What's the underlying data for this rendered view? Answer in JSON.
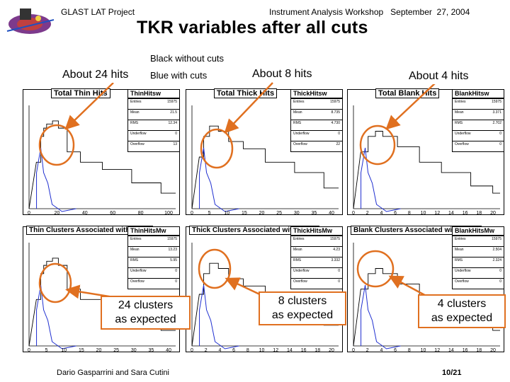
{
  "header": {
    "project": "GLAST LAT Project",
    "workshop": "Instrument Analysis Workshop   September  27, 2004"
  },
  "title": "TKR variables after all cuts",
  "legend": {
    "black": "Black without cuts",
    "blue": "Blue with cuts"
  },
  "hits_labels": [
    "About 24 hits",
    "About 8 hits",
    "About 4 hits"
  ],
  "cluster_labels": [
    {
      "line1": "24 clusters",
      "line2": "as expected"
    },
    {
      "line1": "8 clusters",
      "line2": "as expected"
    },
    {
      "line1": "4 clusters",
      "line2": "as expected"
    }
  ],
  "footer": {
    "authors": "Dario Gasparrini and Sara Cutini",
    "page": "10/21"
  },
  "colors": {
    "callout": "#e07020",
    "blue_hist": "#1f2fd0",
    "black_hist": "#000000"
  },
  "panels": [
    {
      "title": "Total Thin Hits",
      "name": "ThinHitsw",
      "stats": [
        [
          "Entries",
          "15975"
        ],
        [
          "Mean",
          "21.5"
        ],
        [
          "RMS",
          "12.34"
        ],
        [
          "Underflow",
          "0"
        ],
        [
          "Overflow",
          "13"
        ]
      ],
      "x_ticks": [
        "0",
        "20",
        "40",
        "60",
        "80",
        "100"
      ]
    },
    {
      "title": "Total Thick Hits",
      "name": "ThickHitsw",
      "stats": [
        [
          "Entries",
          "15975"
        ],
        [
          "Mean",
          "8.735"
        ],
        [
          "RMS",
          "4.730"
        ],
        [
          "Underflow",
          "0"
        ],
        [
          "Overflow",
          "22"
        ]
      ],
      "x_ticks": [
        "0",
        "5",
        "10",
        "15",
        "20",
        "25",
        "30",
        "35",
        "40"
      ]
    },
    {
      "title": "Total Blank Hits",
      "name": "BlankHitsw",
      "stats": [
        [
          "Entries",
          "15975"
        ],
        [
          "Mean",
          "3.371"
        ],
        [
          "RMS",
          "2.702"
        ],
        [
          "Underflow",
          "0"
        ],
        [
          "Overflow",
          "0"
        ]
      ],
      "x_ticks": [
        "0",
        "2",
        "4",
        "6",
        "8",
        "10",
        "12",
        "14",
        "16",
        "18",
        "20"
      ]
    },
    {
      "title": "Thin Clusters Associated with Track",
      "name": "ThinHitsMw",
      "stats": [
        [
          "Entries",
          "15975"
        ],
        [
          "Mean",
          "13.23"
        ],
        [
          "RMS",
          "5.95"
        ],
        [
          "Underflow",
          "0"
        ],
        [
          "Overflow",
          "0"
        ]
      ],
      "x_ticks": [
        "0",
        "5",
        "10",
        "15",
        "20",
        "25",
        "30",
        "35",
        "40"
      ]
    },
    {
      "title": "Thick Clusters Associated with Track",
      "name": "ThickHitsMw",
      "stats": [
        [
          "Entries",
          "15975"
        ],
        [
          "Mean",
          "4.23"
        ],
        [
          "RMS",
          "3.332"
        ],
        [
          "Underflow",
          "0"
        ],
        [
          "Overflow",
          "0"
        ]
      ],
      "x_ticks": [
        "0",
        "2",
        "4",
        "6",
        "8",
        "10",
        "12",
        "14",
        "16",
        "18",
        "20"
      ]
    },
    {
      "title": "Blank Clusters Associated with Track",
      "name": "BlankHitsMw",
      "stats": [
        [
          "Entries",
          "15975"
        ],
        [
          "Mean",
          "2.504"
        ],
        [
          "RMS",
          "2.324"
        ],
        [
          "Underflow",
          "0"
        ],
        [
          "Overflow",
          "0"
        ]
      ],
      "x_ticks": [
        "0",
        "2",
        "4",
        "6",
        "8",
        "10",
        "12",
        "14",
        "16",
        "18",
        "20"
      ]
    }
  ]
}
